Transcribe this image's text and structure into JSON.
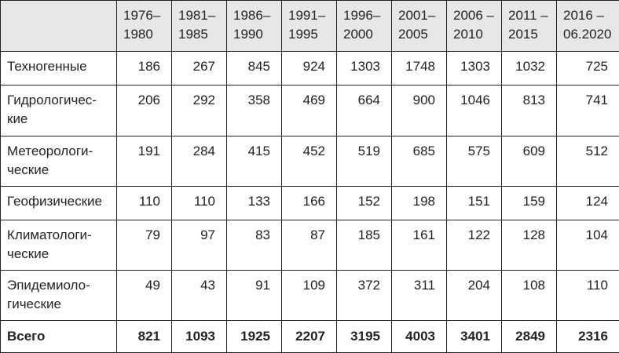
{
  "table": {
    "columns": [
      "1976–\n1980",
      "1981–\n1985",
      "1986–\n1990",
      "1991–\n1995",
      "1996–\n2000",
      "2001–\n2005",
      "2006 –\n2010",
      "2011 –\n2015",
      "2016 –\n06.2020"
    ],
    "rows": [
      [
        "Техногенные",
        186,
        267,
        845,
        924,
        1303,
        1748,
        1303,
        1032,
        725
      ],
      [
        "Гидрологичес-\nкие",
        206,
        292,
        358,
        469,
        664,
        900,
        1046,
        813,
        741
      ],
      [
        "Метеорологи-\nческие",
        191,
        284,
        415,
        452,
        519,
        685,
        575,
        609,
        512
      ],
      [
        "Геофизические",
        110,
        110,
        133,
        166,
        152,
        198,
        151,
        159,
        124
      ],
      [
        "Климатологи-\nческие",
        79,
        97,
        83,
        87,
        185,
        161,
        122,
        128,
        104
      ],
      [
        "Эпидемиоло-\nгические",
        49,
        43,
        91,
        109,
        372,
        311,
        204,
        108,
        110
      ],
      [
        "Всего",
        821,
        1093,
        1925,
        2207,
        3195,
        4003,
        3401,
        2849,
        2316
      ]
    ]
  }
}
